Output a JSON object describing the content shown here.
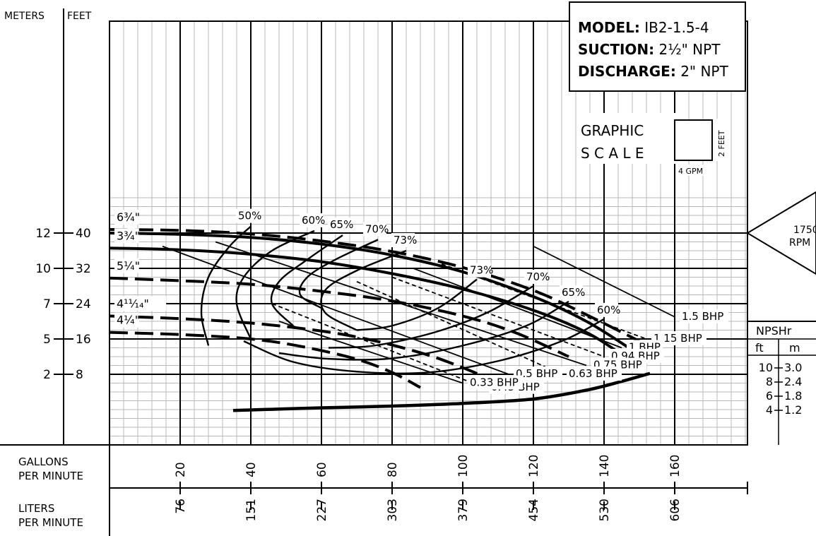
{
  "chart_data": {
    "type": "line",
    "title": "",
    "model_box": {
      "model_label": "MODEL:",
      "model_value": "IB2-1.5-4",
      "suction_label": "SUCTION:",
      "suction_value": "2½\" NPT",
      "discharge_label": "DISCHARGE:",
      "discharge_value": "2\" NPT"
    },
    "axis_headers": {
      "meters": "METERS",
      "feet": "FEET"
    },
    "x_axis": {
      "gpm_label_1": "GALLONS",
      "gpm_label_2": "PER MINUTE",
      "lpm_label_1": "LITERS",
      "lpm_label_2": "PER MINUTE",
      "gpm_ticks": [
        "20",
        "40",
        "60",
        "80",
        "100",
        "120",
        "140",
        "160"
      ],
      "lpm_ticks": [
        "76",
        "151",
        "227",
        "303",
        "379",
        "454",
        "530",
        "606"
      ],
      "xlim": [
        0,
        180
      ]
    },
    "y_axis": {
      "feet_ticks": [
        {
          "feet": 8,
          "label": "8",
          "m": "2"
        },
        {
          "feet": 16,
          "label": "16",
          "m": "5"
        },
        {
          "feet": 24,
          "label": "24",
          "m": "7"
        },
        {
          "feet": 32,
          "label": "32",
          "m": "10"
        },
        {
          "feet": 40,
          "label": "40",
          "m": "12"
        }
      ],
      "ylim": [
        -3,
        48
      ]
    },
    "graphic_scale": {
      "word1": "GRAPHIC",
      "word2": "S C A L E",
      "height_label": "2 FEET",
      "width_label": "4 GPM"
    },
    "rpm": {
      "value": "1750",
      "unit": "RPM"
    },
    "impellers": [
      {
        "label": "6¾\"",
        "style": "dashed",
        "points": [
          [
            0,
            40.8
          ],
          [
            20,
            40.6
          ],
          [
            40,
            39.8
          ],
          [
            60,
            38.2
          ],
          [
            80,
            35.8
          ],
          [
            100,
            32.2
          ],
          [
            120,
            27
          ],
          [
            135,
            21.5
          ],
          [
            150,
            15.5
          ]
        ]
      },
      {
        "label": "",
        "style": "solid",
        "points": [
          [
            0,
            40
          ],
          [
            20,
            39.7
          ],
          [
            40,
            39
          ],
          [
            60,
            37.5
          ],
          [
            80,
            35
          ],
          [
            100,
            31.2
          ],
          [
            120,
            25.6
          ],
          [
            135,
            20
          ],
          [
            148,
            13.5
          ]
        ]
      },
      {
        "label": "3¾\"",
        "style": "solid",
        "points": [
          [
            0,
            36.6
          ],
          [
            20,
            36.2
          ],
          [
            40,
            35.2
          ],
          [
            60,
            33.5
          ],
          [
            80,
            30.8
          ],
          [
            100,
            27.3
          ],
          [
            120,
            22.5
          ],
          [
            135,
            17.5
          ],
          [
            145,
            12.5
          ]
        ]
      },
      {
        "label": "5¼\"",
        "style": "dashed",
        "points": [
          [
            0,
            29.8
          ],
          [
            20,
            29.2
          ],
          [
            40,
            28.4
          ],
          [
            60,
            26.8
          ],
          [
            80,
            24.6
          ],
          [
            100,
            21.2
          ],
          [
            115,
            17.4
          ],
          [
            130,
            12
          ]
        ]
      },
      {
        "label": "4¹¹⁄₁₄\"",
        "style": "dashed",
        "points": [
          [
            0,
            21.2
          ],
          [
            20,
            20.6
          ],
          [
            40,
            19.6
          ],
          [
            60,
            17.8
          ],
          [
            75,
            15.6
          ],
          [
            90,
            12.4
          ],
          [
            100,
            9.5
          ],
          [
            108,
            6.8
          ]
        ]
      },
      {
        "label": "4¼\"",
        "style": "dashed",
        "points": [
          [
            0,
            17.5
          ],
          [
            20,
            17
          ],
          [
            40,
            16
          ],
          [
            55,
            14.2
          ],
          [
            70,
            11.4
          ],
          [
            80,
            8.4
          ],
          [
            88,
            5
          ]
        ]
      }
    ],
    "efficiency_curves": [
      {
        "label": "50%",
        "points": [
          [
            28,
            14.5
          ],
          [
            26,
            22
          ],
          [
            28,
            30
          ],
          [
            34,
            37
          ],
          [
            40,
            41.5
          ]
        ]
      },
      {
        "label": "60%",
        "points": [
          [
            40,
            16
          ],
          [
            36,
            24
          ],
          [
            38,
            30
          ],
          [
            46,
            36
          ],
          [
            58,
            40.5
          ]
        ]
      },
      {
        "label": "65%",
        "points": [
          [
            52,
            19
          ],
          [
            46,
            24
          ],
          [
            48,
            29
          ],
          [
            56,
            34
          ],
          [
            66,
            39.5
          ]
        ]
      },
      {
        "label": "70%",
        "points": [
          [
            60,
            23
          ],
          [
            54,
            26
          ],
          [
            56,
            30
          ],
          [
            64,
            34
          ],
          [
            76,
            38.5
          ]
        ]
      },
      {
        "label": "73%",
        "points": [
          [
            70,
            18
          ],
          [
            61,
            22
          ],
          [
            61,
            27
          ],
          [
            70,
            31.5
          ],
          [
            84,
            36
          ]
        ]
      },
      {
        "label": "73%",
        "points": [
          [
            70,
            18
          ],
          [
            80,
            19
          ],
          [
            93,
            23
          ],
          [
            104,
            29.5
          ]
        ]
      },
      {
        "label": "70%",
        "points": [
          [
            62,
            14
          ],
          [
            75,
            14.5
          ],
          [
            92,
            17.5
          ],
          [
            107,
            22
          ],
          [
            120,
            28
          ]
        ]
      },
      {
        "label": "65%",
        "points": [
          [
            48,
            12.8
          ],
          [
            62,
            11.5
          ],
          [
            80,
            11.6
          ],
          [
            100,
            14.5
          ],
          [
            118,
            19
          ],
          [
            130,
            24.5
          ]
        ]
      },
      {
        "label": "60%",
        "points": [
          [
            38,
            15.5
          ],
          [
            52,
            10.8
          ],
          [
            70,
            8.6
          ],
          [
            90,
            8.4
          ],
          [
            110,
            11
          ],
          [
            128,
            15.5
          ],
          [
            140,
            20.5
          ]
        ]
      }
    ],
    "bhp_lines": [
      {
        "label": "1.5 BHP",
        "style": "solid",
        "points": [
          [
            120,
            37
          ],
          [
            160,
            21
          ]
        ]
      },
      {
        "label": "1.15 BHP",
        "style": "dashed",
        "points": [
          [
            94,
            33
          ],
          [
            152,
            16
          ]
        ]
      },
      {
        "label": "1 BHP",
        "style": "solid",
        "points": [
          [
            86,
            32
          ],
          [
            145,
            14
          ]
        ]
      },
      {
        "label": "0.94 BHP",
        "style": "dashed",
        "points": [
          [
            80,
            30
          ],
          [
            140,
            12
          ]
        ]
      },
      {
        "label": "0.75 BHP",
        "style": "solid",
        "points": [
          [
            30,
            38
          ],
          [
            135,
            10
          ]
        ]
      },
      {
        "label": "0.63 BHP",
        "style": "dashed",
        "points": [
          [
            70,
            29
          ],
          [
            128,
            8
          ]
        ]
      },
      {
        "label": "0.5 BHP",
        "style": "solid",
        "points": [
          [
            15,
            37
          ],
          [
            113,
            8
          ]
        ]
      },
      {
        "label": "0.45 BHP",
        "style": "dashed",
        "points": [
          [
            46,
            24
          ],
          [
            106,
            5
          ]
        ]
      },
      {
        "label": "0.33 BHP",
        "style": "solid",
        "points": [
          [
            48,
            20
          ],
          [
            100,
            6
          ]
        ]
      }
    ],
    "npshr": {
      "title": "NPSHr",
      "col_ft": "ft",
      "col_m": "m",
      "rows": [
        {
          "ft": "10",
          "m": "3.0"
        },
        {
          "ft": "8",
          "m": "2.4"
        },
        {
          "ft": "6",
          "m": "1.8"
        },
        {
          "ft": "4",
          "m": "1.2"
        }
      ],
      "curve": [
        [
          35,
          -0.2
        ],
        [
          60,
          0.4
        ],
        [
          80,
          0.8
        ],
        [
          100,
          1.4
        ],
        [
          120,
          2.4
        ],
        [
          135,
          4.4
        ],
        [
          145,
          6.4
        ],
        [
          153,
          8.2
        ]
      ]
    }
  }
}
